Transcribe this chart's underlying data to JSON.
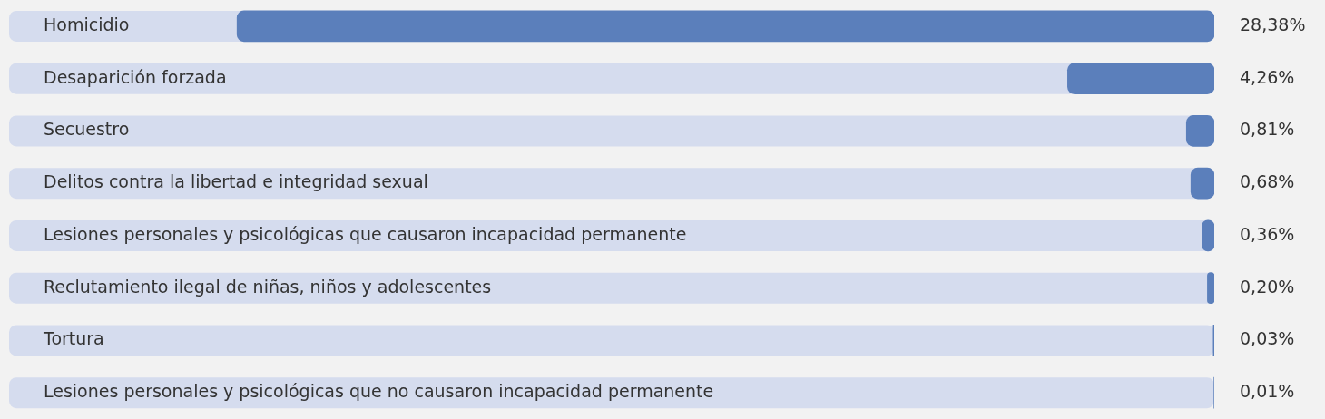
{
  "chart_data": {
    "type": "bar",
    "orientation": "horizontal",
    "categories": [
      "Homicidio",
      "Desaparición forzada",
      "Secuestro",
      "Delitos contra la libertad e integridad sexual",
      "Lesiones personales y psicológicas que causaron incapacidad permanente",
      "Reclutamiento ilegal de niñas, niños y adolescentes",
      "Tortura",
      "Lesiones personales y psicológicas que no causaron incapacidad permanente"
    ],
    "values": [
      28.38,
      4.26,
      0.81,
      0.68,
      0.36,
      0.2,
      0.03,
      0.01
    ],
    "value_labels": [
      "28,38%",
      "4,26%",
      "0,81%",
      "0,68%",
      "0,36%",
      "0,20%",
      "0,03%",
      "0,01%"
    ],
    "color": "#5b7fbb",
    "xlim": [
      35,
      0
    ],
    "tick_labels": "y"
  }
}
